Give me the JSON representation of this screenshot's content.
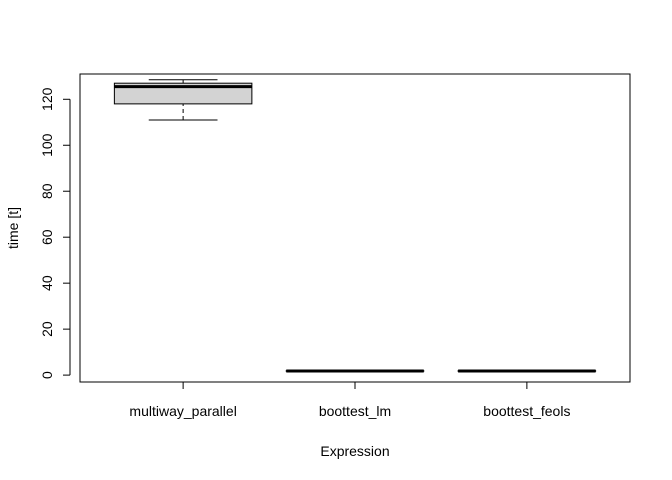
{
  "chart_data": {
    "type": "boxplot",
    "title": "",
    "xlabel": "Expression",
    "ylabel": "time [t]",
    "categories": [
      "multiway_parallel",
      "boottest_lm",
      "boottest_feols"
    ],
    "ylim": [
      -3,
      131
    ],
    "yticks": [
      0,
      20,
      40,
      60,
      80,
      100,
      120
    ],
    "grid": false,
    "legend": "none",
    "box_fill": "#d3d3d3",
    "boxes": [
      {
        "category": "multiway_parallel",
        "whisker_low": 111,
        "q1": 118,
        "median": 125.5,
        "q3": 127,
        "whisker_high": 128.5
      },
      {
        "category": "boottest_lm",
        "whisker_low": 1.6,
        "q1": 1.7,
        "median": 1.8,
        "q3": 1.9,
        "whisker_high": 2.0
      },
      {
        "category": "boottest_feols",
        "whisker_low": 1.6,
        "q1": 1.7,
        "median": 1.8,
        "q3": 1.9,
        "whisker_high": 2.0
      }
    ]
  }
}
